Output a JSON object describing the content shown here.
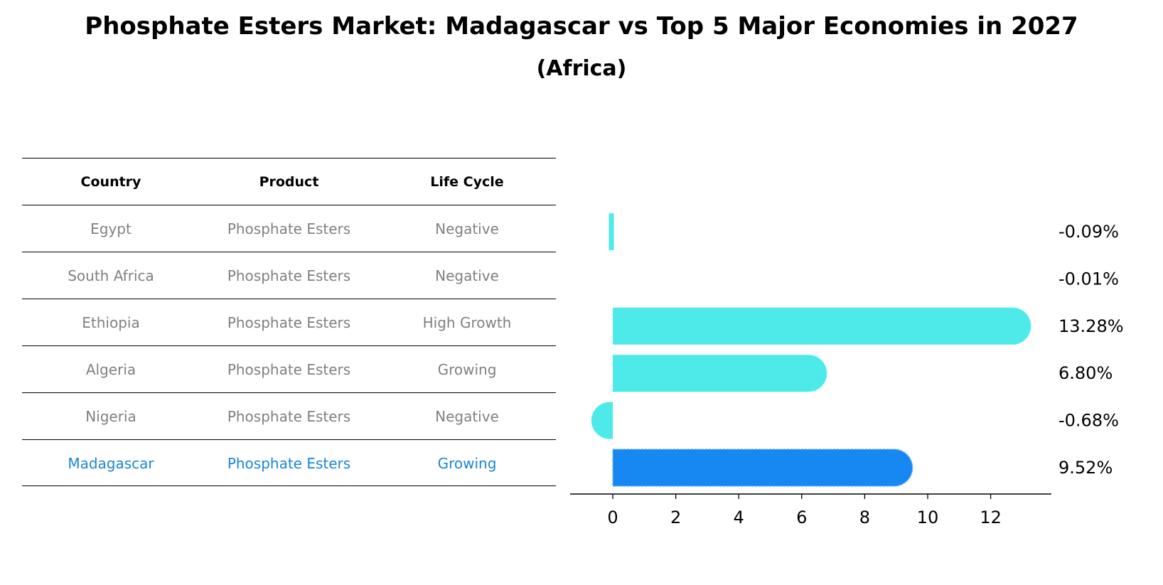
{
  "title": "Phosphate Esters Market: Madagascar vs Top 5 Major Economies in 2027",
  "subtitle": "(Africa)",
  "table": {
    "headers": [
      "Country",
      "Product",
      "Life Cycle"
    ],
    "rows": [
      [
        "Egypt",
        "Phosphate Esters",
        "Negative"
      ],
      [
        "South Africa",
        "Phosphate Esters",
        "Negative"
      ],
      [
        "Ethiopia",
        "Phosphate Esters",
        "High Growth"
      ],
      [
        "Algeria",
        "Phosphate Esters",
        "Growing"
      ],
      [
        "Nigeria",
        "Phosphate Esters",
        "Negative"
      ],
      [
        "Madagascar",
        "Phosphate Esters",
        "Growing"
      ]
    ]
  },
  "colors": {
    "bar": "#4eeaea",
    "highlight_bar": "#1787f2",
    "highlight_text": "#1a86d6",
    "table_text": "#808080"
  },
  "chart_data": {
    "type": "bar",
    "orientation": "horizontal",
    "categories": [
      "Egypt",
      "South Africa",
      "Ethiopia",
      "Algeria",
      "Nigeria",
      "Madagascar"
    ],
    "values": [
      -0.09,
      -0.01,
      13.28,
      6.8,
      -0.68,
      9.52
    ],
    "value_labels": [
      "-0.09%",
      "-0.01%",
      "13.28%",
      "6.80%",
      "-0.68%",
      "9.52%"
    ],
    "highlight": "Madagascar",
    "xticks": [
      0,
      2,
      4,
      6,
      8,
      10,
      12
    ],
    "xlim": [
      -1.4,
      13.9
    ],
    "grid": false
  }
}
